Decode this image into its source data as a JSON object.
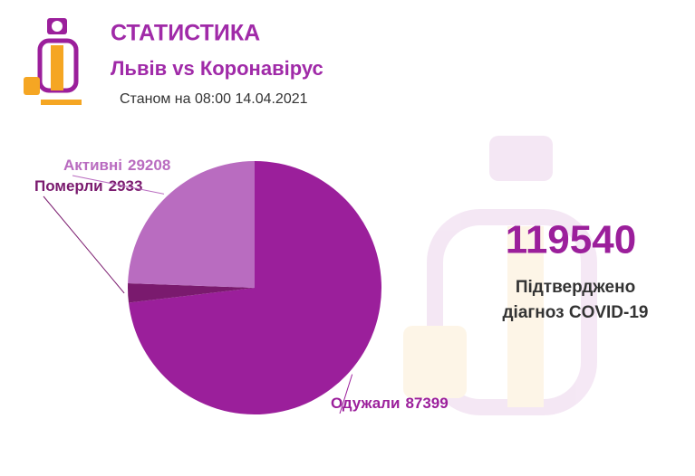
{
  "chart_data": {
    "type": "pie",
    "title": "СТАТИСТИКА",
    "subtitle": "Львів vs Коронавірус",
    "date": "Станом на 08:00 14.04.2021",
    "categories": [
      "Одужали",
      "Померли",
      "Активні"
    ],
    "values": [
      87399,
      2933,
      29208
    ],
    "colors": [
      "#9b1f9b",
      "#7a1a6e",
      "#b96cc0"
    ],
    "total": 119540,
    "total_caption": [
      "Підтверджено",
      "діагноз COVID-19"
    ]
  }
}
